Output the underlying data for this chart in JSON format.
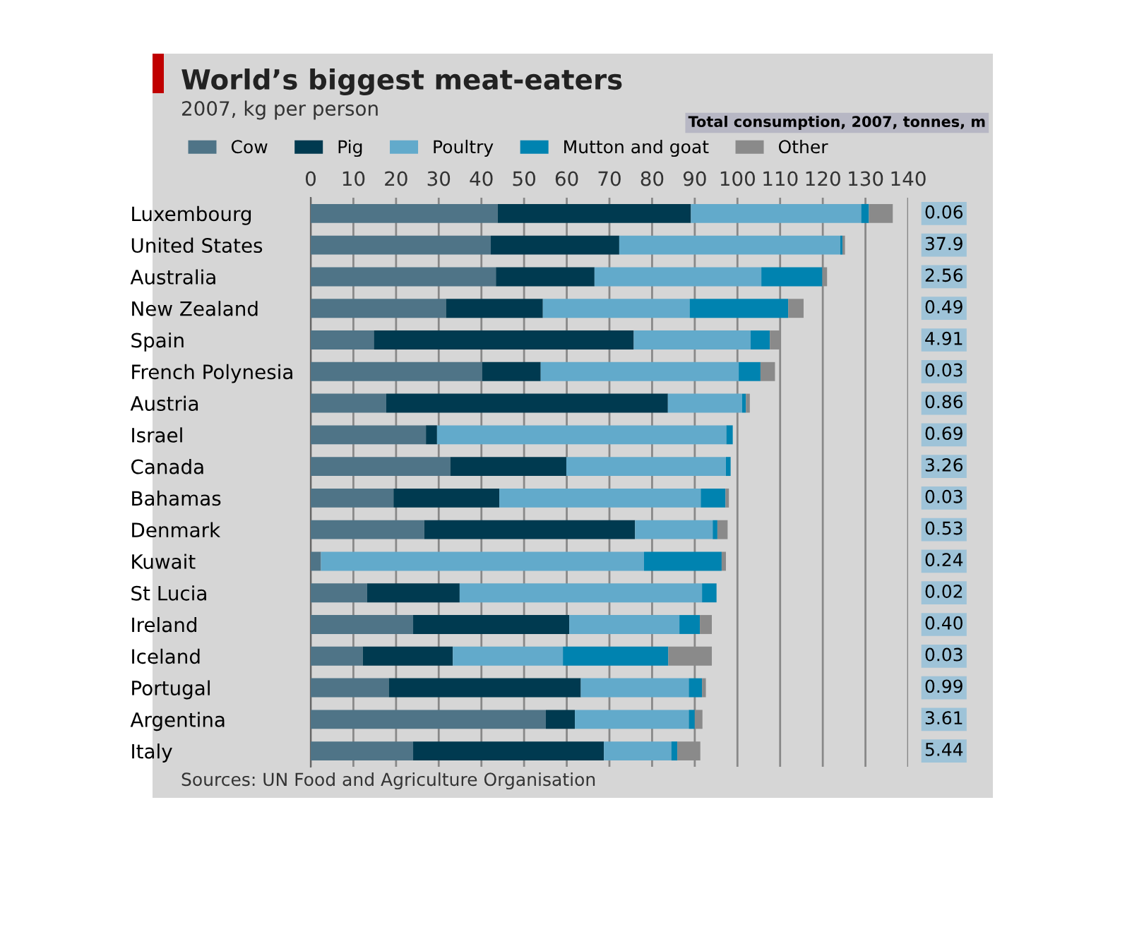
{
  "chart_data": {
    "type": "bar",
    "orientation": "horizontal",
    "stacked": true,
    "title": "World’s biggest meat-eaters",
    "subtitle": "2007, kg per person",
    "categories": [
      "Luxembourg",
      "United States",
      "Australia",
      "New Zealand",
      "Spain",
      "French Polynesia",
      "Austria",
      "Israel",
      "Canada",
      "Bahamas",
      "Denmark",
      "Kuwait",
      "St Lucia",
      "Ireland",
      "Iceland",
      "Portugal",
      "Argentina",
      "Italy"
    ],
    "series": [
      {
        "name": "Cow",
        "color": "#4f7487",
        "values": [
          43.8,
          42.2,
          43.4,
          31.7,
          14.8,
          40.2,
          17.7,
          27.0,
          32.7,
          19.4,
          26.6,
          2.4,
          13.2,
          24.0,
          12.2,
          18.3,
          55.1,
          24.0
        ]
      },
      {
        "name": "Pig",
        "color": "#003a50",
        "values": [
          45.3,
          30.1,
          23.1,
          22.7,
          60.9,
          13.7,
          66.0,
          2.6,
          27.2,
          24.8,
          49.4,
          0,
          21.7,
          36.6,
          21.1,
          45.0,
          6.8,
          44.7
        ]
      },
      {
        "name": "Poultry",
        "color": "#62aacb",
        "values": [
          39.9,
          51.8,
          39.1,
          34.4,
          27.4,
          46.4,
          17.4,
          67.8,
          37.4,
          47.2,
          18.2,
          75.7,
          56.8,
          25.8,
          25.8,
          25.3,
          26.7,
          15.8
        ]
      },
      {
        "name": "Mutton and goat",
        "color": "#0083b0",
        "values": [
          1.8,
          0.5,
          14.3,
          23.1,
          4.5,
          5.1,
          0.9,
          1.5,
          1.1,
          5.8,
          1.1,
          18.2,
          3.4,
          4.8,
          24.7,
          3.1,
          1.4,
          1.4
        ]
      },
      {
        "name": "Other",
        "color": "#8a8a8a",
        "values": [
          5.6,
          0.6,
          1.1,
          3.6,
          2.3,
          3.4,
          0.9,
          0,
          0,
          0.8,
          2.4,
          1.0,
          0,
          2.8,
          10.2,
          0.9,
          1.8,
          5.4
        ]
      }
    ],
    "xlim": [
      0,
      140
    ],
    "xticks": [
      0,
      10,
      20,
      30,
      40,
      50,
      60,
      70,
      80,
      90,
      100,
      110,
      120,
      130,
      140
    ],
    "grid": "x",
    "legend": "top left",
    "annotations": [
      "Total consumption, 2007, tonnes, m",
      "0.06",
      "37.9",
      "2.56",
      "0.49",
      "4.91",
      "0.03",
      "0.86",
      "0.69",
      "3.26",
      "0.03",
      "0.53",
      "0.24",
      "0.02",
      "0.40",
      "0.03",
      "0.99",
      "3.61",
      "5.44",
      "Sources: UN Food and Agriculture Organisation"
    ]
  }
}
